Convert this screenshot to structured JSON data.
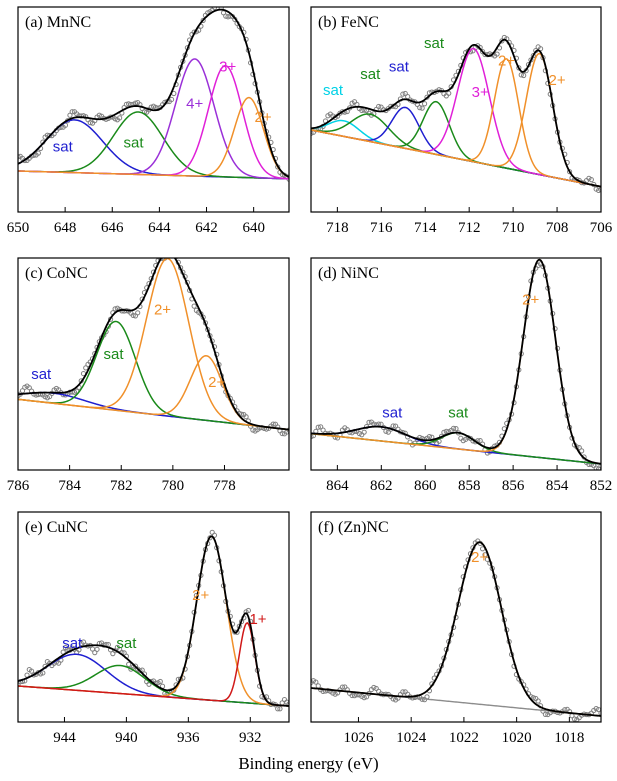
{
  "figure": {
    "xlabel": "Binding energy (eV)"
  },
  "colors": {
    "envelope": "#000000",
    "background": "#8c8c8c",
    "data_points": "#7f7f7f",
    "sat_blue": "#1f1fd0",
    "sat_green": "#1a8a1a",
    "sat_cyan": "#00d2e6",
    "ion_2plus": "#f0902a",
    "ion_3plus": "#e020d8",
    "ion_4plus": "#9a30d8",
    "ion_1plus": "#d01818"
  },
  "chart_data": [
    {
      "type": "line",
      "title": "(a) MnNC",
      "xlim": [
        650,
        638.5
      ],
      "xticks": [
        650,
        648,
        646,
        644,
        642,
        640
      ],
      "ylim": [
        0,
        1.05
      ],
      "background": {
        "a": 0.21,
        "b": 0.17
      },
      "components": [
        {
          "label": "sat",
          "center": 647.6,
          "amp": 0.27,
          "width": 1.2,
          "color": "sat_blue",
          "label_at": [
            648.1,
            0.31
          ]
        },
        {
          "label": "sat",
          "center": 644.9,
          "amp": 0.32,
          "width": 1.05,
          "color": "sat_green",
          "label_at": [
            645.1,
            0.33
          ]
        },
        {
          "label": "4+",
          "center": 642.5,
          "amp": 0.6,
          "width": 0.82,
          "color": "ion_4plus",
          "label_at": [
            642.5,
            0.53
          ]
        },
        {
          "label": "3+",
          "center": 641.2,
          "amp": 0.57,
          "width": 0.72,
          "color": "ion_3plus",
          "label_at": [
            641.1,
            0.72
          ]
        },
        {
          "label": "2+",
          "center": 640.2,
          "amp": 0.41,
          "width": 0.62,
          "color": "ion_2plus",
          "label_at": [
            639.6,
            0.46
          ]
        }
      ]
    },
    {
      "type": "line",
      "title": "(b) FeNC",
      "xlim": [
        719.2,
        706
      ],
      "xticks": [
        718,
        716,
        714,
        712,
        710,
        708,
        706
      ],
      "ylim": [
        0,
        1.05
      ],
      "background": {
        "a": 0.42,
        "b": 0.13
      },
      "components": [
        {
          "label": "sat",
          "center": 717.7,
          "amp": 0.08,
          "width": 0.7,
          "color": "sat_cyan",
          "label_at": [
            718.2,
            0.6
          ]
        },
        {
          "label": "sat",
          "center": 716.5,
          "amp": 0.14,
          "width": 0.85,
          "color": "sat_green",
          "label_at": [
            716.5,
            0.68
          ]
        },
        {
          "label": "sat",
          "center": 714.9,
          "amp": 0.21,
          "width": 0.62,
          "color": "sat_blue",
          "label_at": [
            715.2,
            0.72
          ]
        },
        {
          "label": "sat",
          "center": 713.5,
          "amp": 0.27,
          "width": 0.6,
          "color": "sat_green",
          "label_at": [
            713.6,
            0.84
          ]
        },
        {
          "label": "3+",
          "center": 711.8,
          "amp": 0.58,
          "width": 0.72,
          "color": "ion_3plus",
          "label_at": [
            711.5,
            0.59
          ]
        },
        {
          "label": "2+",
          "center": 710.3,
          "amp": 0.56,
          "width": 0.55,
          "color": "ion_2plus",
          "label_at": [
            710.3,
            0.75
          ]
        },
        {
          "label": "2+",
          "center": 708.8,
          "amp": 0.62,
          "width": 0.6,
          "color": "ion_2plus",
          "label_at": [
            708.0,
            0.65
          ]
        }
      ]
    },
    {
      "type": "line",
      "title": "(c) CoNC",
      "xlim": [
        786,
        775.5
      ],
      "xticks": [
        786,
        784,
        782,
        780,
        778
      ],
      "ylim": [
        0,
        1.05
      ],
      "background": {
        "a": 0.35,
        "b": 0.2
      },
      "components": [
        {
          "label": "sat",
          "center": 784.6,
          "amp": 0.05,
          "width": 1.2,
          "color": "sat_blue",
          "label_at": [
            785.1,
            0.45
          ]
        },
        {
          "label": "sat",
          "center": 782.2,
          "amp": 0.44,
          "width": 0.75,
          "color": "sat_green",
          "label_at": [
            782.3,
            0.55
          ]
        },
        {
          "label": "2+",
          "center": 780.2,
          "amp": 0.78,
          "width": 0.82,
          "color": "ion_2plus",
          "label_at": [
            780.4,
            0.77
          ]
        },
        {
          "label": "2+",
          "center": 778.7,
          "amp": 0.32,
          "width": 0.62,
          "color": "ion_2plus",
          "label_at": [
            778.3,
            0.41
          ]
        }
      ]
    },
    {
      "type": "line",
      "title": "(d) NiNC",
      "xlim": [
        865.2,
        852
      ],
      "xticks": [
        864,
        862,
        860,
        858,
        856,
        854,
        852
      ],
      "ylim": [
        0,
        1.05
      ],
      "background": {
        "a": 0.18,
        "b": 0.03
      },
      "components": [
        {
          "label": "sat",
          "center": 862.0,
          "amp": 0.07,
          "width": 1.15,
          "color": "sat_blue",
          "label_at": [
            861.5,
            0.26
          ]
        },
        {
          "label": "sat",
          "center": 858.5,
          "amp": 0.08,
          "width": 0.75,
          "color": "sat_green",
          "label_at": [
            858.5,
            0.26
          ]
        },
        {
          "label": "2+",
          "center": 854.8,
          "amp": 0.98,
          "width": 0.73,
          "color": "ion_2plus",
          "label_at": [
            855.2,
            0.82
          ]
        }
      ]
    },
    {
      "type": "line",
      "title": "(e) CuNC",
      "xlim": [
        947,
        929.5
      ],
      "xticks": [
        944,
        940,
        936,
        932
      ],
      "ylim": [
        0,
        1.05
      ],
      "background": {
        "a": 0.18,
        "b": 0.08
      },
      "components": [
        {
          "label": "sat",
          "center": 943.2,
          "amp": 0.18,
          "width": 1.9,
          "color": "sat_blue",
          "label_at": [
            943.5,
            0.37
          ]
        },
        {
          "label": "sat",
          "center": 940.4,
          "amp": 0.14,
          "width": 1.6,
          "color": "sat_green",
          "label_at": [
            940.0,
            0.37
          ]
        },
        {
          "label": "2+",
          "center": 934.5,
          "amp": 0.82,
          "width": 0.95,
          "color": "ion_2plus",
          "label_at": [
            935.2,
            0.61
          ]
        },
        {
          "label": "1+",
          "center": 932.2,
          "amp": 0.4,
          "width": 0.5,
          "color": "ion_1plus",
          "label_at": [
            931.5,
            0.49
          ]
        }
      ]
    },
    {
      "type": "line",
      "title": "(f) (Zn)NC",
      "xlim": [
        1027.8,
        1016.8
      ],
      "xticks": [
        1026,
        1024,
        1022,
        1020,
        1018
      ],
      "ylim": [
        0,
        1.05
      ],
      "background": {
        "a": 0.17,
        "b": 0.03
      },
      "components": [
        {
          "label": "2+",
          "center": 1021.4,
          "amp": 0.81,
          "width": 0.82,
          "color": "ion_2plus",
          "label_at": [
            1021.4,
            0.8
          ]
        }
      ]
    }
  ]
}
